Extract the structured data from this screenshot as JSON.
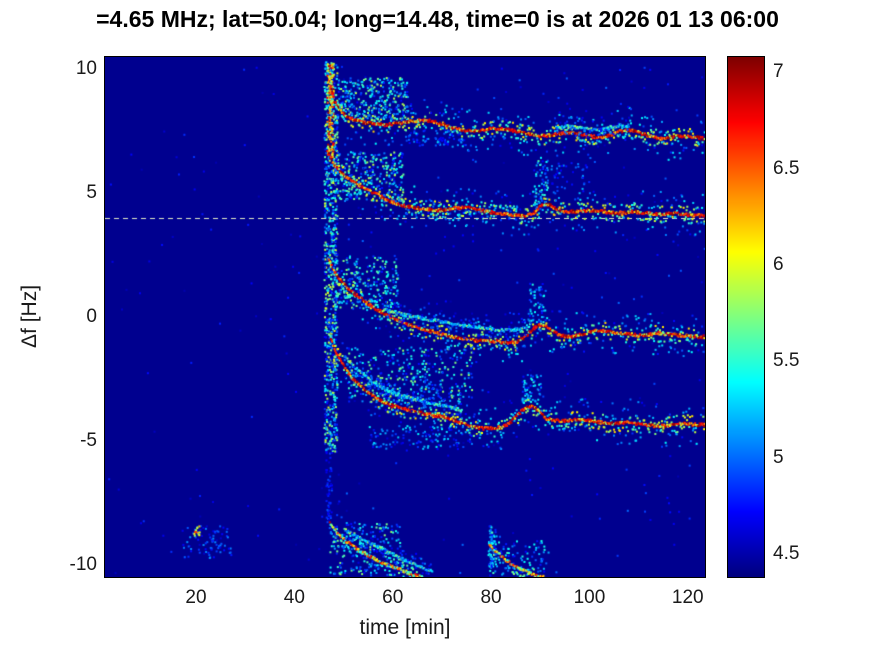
{
  "chart_data": {
    "type": "heatmap",
    "title": "=4.65 MHz;  lat=50.04; long=14.48, time=0 is at 2026 01 13 06:00",
    "xlabel": "time [min]",
    "ylabel": "Δf [Hz]",
    "xlim": [
      1.5,
      123.5
    ],
    "ylim": [
      -10.5,
      10.5
    ],
    "xticks": [
      20,
      40,
      60,
      80,
      100,
      120
    ],
    "yticks": [
      10,
      5,
      0,
      -5,
      -10
    ],
    "grid": false,
    "colormap": "jet",
    "background_value": 4.42,
    "colorbar": {
      "position": "right",
      "range": [
        4.38,
        7.08
      ],
      "ticks": [
        7,
        6.5,
        6,
        5.5,
        5,
        4.5
      ]
    },
    "reference_line": {
      "f": 4.0,
      "style": "dashed",
      "color": "#e3ecc8"
    },
    "traces": [
      {
        "name": "upper-trace",
        "strength": "strong",
        "points": [
          [
            46.6,
            10.2
          ],
          [
            47.2,
            9.3
          ],
          [
            48,
            8.7
          ],
          [
            49,
            8.35
          ],
          [
            50.5,
            8.1
          ],
          [
            52,
            7.95
          ],
          [
            54,
            7.85
          ],
          [
            56,
            7.8
          ],
          [
            58,
            7.75
          ],
          [
            60,
            7.8
          ],
          [
            62,
            7.85
          ],
          [
            64,
            7.9
          ],
          [
            66,
            7.95
          ],
          [
            68,
            7.9
          ],
          [
            70,
            7.8
          ],
          [
            72,
            7.65
          ],
          [
            74,
            7.55
          ],
          [
            76,
            7.5
          ],
          [
            78,
            7.55
          ],
          [
            80,
            7.6
          ],
          [
            82,
            7.6
          ],
          [
            84,
            7.55
          ],
          [
            86,
            7.45
          ],
          [
            88,
            7.35
          ],
          [
            90,
            7.3
          ],
          [
            92,
            7.35
          ],
          [
            94,
            7.4
          ],
          [
            96,
            7.45
          ],
          [
            98,
            7.4
          ],
          [
            100,
            7.3
          ],
          [
            102,
            7.25
          ],
          [
            104,
            7.35
          ],
          [
            106,
            7.5
          ],
          [
            108,
            7.55
          ],
          [
            110,
            7.45
          ],
          [
            112,
            7.3
          ],
          [
            114,
            7.2
          ],
          [
            116,
            7.25
          ],
          [
            118,
            7.3
          ],
          [
            120,
            7.3
          ],
          [
            122,
            7.25
          ],
          [
            123.3,
            7.2
          ]
        ]
      },
      {
        "name": "upper-trace-echo",
        "strength": "faint",
        "points": [
          [
            93,
            7.65
          ],
          [
            96,
            7.7
          ],
          [
            99,
            7.6
          ],
          [
            102,
            7.55
          ],
          [
            105,
            7.7
          ],
          [
            108,
            7.75
          ]
        ]
      },
      {
        "name": "upper-mid-trace",
        "strength": "strong",
        "points": [
          [
            46.8,
            6.6
          ],
          [
            48,
            6.1
          ],
          [
            49.5,
            5.8
          ],
          [
            51,
            5.55
          ],
          [
            53,
            5.3
          ],
          [
            55,
            5.1
          ],
          [
            57,
            4.9
          ],
          [
            59,
            4.7
          ],
          [
            61,
            4.55
          ],
          [
            63,
            4.45
          ],
          [
            65,
            4.4
          ],
          [
            67,
            4.35
          ],
          [
            69,
            4.3
          ],
          [
            71,
            4.35
          ],
          [
            73,
            4.4
          ],
          [
            75,
            4.45
          ],
          [
            77,
            4.35
          ],
          [
            79,
            4.25
          ],
          [
            81,
            4.2
          ],
          [
            83,
            4.15
          ],
          [
            85,
            4.1
          ],
          [
            87,
            4.1
          ],
          [
            88.5,
            4.2
          ],
          [
            90,
            4.5
          ],
          [
            91.5,
            4.55
          ],
          [
            93,
            4.35
          ],
          [
            95,
            4.25
          ],
          [
            97,
            4.25
          ],
          [
            99,
            4.3
          ],
          [
            101,
            4.3
          ],
          [
            103,
            4.25
          ],
          [
            105,
            4.2
          ],
          [
            107,
            4.2
          ],
          [
            109,
            4.25
          ],
          [
            111,
            4.2
          ],
          [
            113,
            4.15
          ],
          [
            115,
            4.15
          ],
          [
            117,
            4.2
          ],
          [
            119,
            4.15
          ],
          [
            121,
            4.1
          ],
          [
            123.3,
            4.1
          ]
        ]
      },
      {
        "name": "center-trace",
        "strength": "strong",
        "points": [
          [
            46.8,
            2.3
          ],
          [
            48,
            1.8
          ],
          [
            49.5,
            1.4
          ],
          [
            51,
            1.1
          ],
          [
            53,
            0.8
          ],
          [
            55,
            0.5
          ],
          [
            57,
            0.25
          ],
          [
            59,
            0.05
          ],
          [
            61,
            -0.15
          ],
          [
            63,
            -0.3
          ],
          [
            65,
            -0.45
          ],
          [
            67,
            -0.55
          ],
          [
            69,
            -0.65
          ],
          [
            71,
            -0.75
          ],
          [
            73,
            -0.85
          ],
          [
            75,
            -0.9
          ],
          [
            77,
            -0.95
          ],
          [
            79,
            -0.95
          ],
          [
            81,
            -1.0
          ],
          [
            83,
            -1.05
          ],
          [
            85,
            -1.0
          ],
          [
            86.5,
            -0.85
          ],
          [
            88,
            -0.55
          ],
          [
            89.5,
            -0.3
          ],
          [
            91,
            -0.35
          ],
          [
            92.5,
            -0.6
          ],
          [
            94,
            -0.75
          ],
          [
            96,
            -0.8
          ],
          [
            98,
            -0.7
          ],
          [
            100,
            -0.6
          ],
          [
            102,
            -0.55
          ],
          [
            104,
            -0.6
          ],
          [
            106,
            -0.65
          ],
          [
            108,
            -0.7
          ],
          [
            110,
            -0.75
          ],
          [
            112,
            -0.7
          ],
          [
            114,
            -0.65
          ],
          [
            116,
            -0.7
          ],
          [
            118,
            -0.75
          ],
          [
            120,
            -0.75
          ],
          [
            122,
            -0.8
          ],
          [
            123.3,
            -0.8
          ]
        ]
      },
      {
        "name": "center-trace-echo",
        "strength": "faint",
        "points": [
          [
            58,
            0.3
          ],
          [
            62,
            0.1
          ],
          [
            66,
            -0.05
          ],
          [
            70,
            -0.2
          ],
          [
            74,
            -0.35
          ],
          [
            78,
            -0.45
          ],
          [
            82,
            -0.55
          ],
          [
            86,
            -0.5
          ],
          [
            88,
            -0.3
          ]
        ]
      },
      {
        "name": "lower-trace",
        "strength": "strong",
        "points": [
          [
            47.2,
            -0.9
          ],
          [
            48,
            -1.3
          ],
          [
            49,
            -1.7
          ],
          [
            50,
            -2.05
          ],
          [
            51.5,
            -2.45
          ],
          [
            53,
            -2.75
          ],
          [
            54.5,
            -3.0
          ],
          [
            56,
            -3.2
          ],
          [
            58,
            -3.45
          ],
          [
            60,
            -3.6
          ],
          [
            62,
            -3.7
          ],
          [
            64,
            -3.8
          ],
          [
            66,
            -3.9
          ],
          [
            68,
            -3.95
          ],
          [
            70,
            -4.05
          ],
          [
            72,
            -4.15
          ],
          [
            74,
            -4.3
          ],
          [
            76,
            -4.45
          ],
          [
            78,
            -4.5
          ],
          [
            80,
            -4.5
          ],
          [
            82,
            -4.45
          ],
          [
            83.5,
            -4.3
          ],
          [
            85,
            -4.0
          ],
          [
            86.5,
            -3.7
          ],
          [
            88,
            -3.6
          ],
          [
            89.5,
            -3.8
          ],
          [
            91,
            -4.1
          ],
          [
            93,
            -4.2
          ],
          [
            95,
            -4.2
          ],
          [
            97,
            -4.15
          ],
          [
            99,
            -4.15
          ],
          [
            101,
            -4.2
          ],
          [
            103,
            -4.3
          ],
          [
            105,
            -4.3
          ],
          [
            107,
            -4.25
          ],
          [
            109,
            -4.3
          ],
          [
            111,
            -4.35
          ],
          [
            113,
            -4.4
          ],
          [
            115,
            -4.4
          ],
          [
            117,
            -4.35
          ],
          [
            119,
            -4.3
          ],
          [
            121,
            -4.35
          ],
          [
            123.3,
            -4.35
          ]
        ]
      },
      {
        "name": "lower-trace-echo",
        "strength": "faint",
        "points": [
          [
            50,
            -1.6
          ],
          [
            53,
            -2.2
          ],
          [
            56,
            -2.7
          ],
          [
            59,
            -3.0
          ],
          [
            62,
            -3.2
          ],
          [
            65,
            -3.35
          ],
          [
            68,
            -3.5
          ],
          [
            71,
            -3.6
          ],
          [
            74,
            -3.8
          ]
        ]
      },
      {
        "name": "bottom-trace-1",
        "strength": "medium",
        "points": [
          [
            47,
            -8.3
          ],
          [
            48.5,
            -8.7
          ],
          [
            50,
            -9.0
          ],
          [
            52,
            -9.3
          ],
          [
            54,
            -9.55
          ],
          [
            56,
            -9.75
          ],
          [
            58,
            -9.95
          ],
          [
            60,
            -10.1
          ],
          [
            62,
            -10.25
          ],
          [
            64,
            -10.4
          ],
          [
            66,
            -10.5
          ]
        ]
      },
      {
        "name": "bottom-trace-1-echo",
        "strength": "faint",
        "points": [
          [
            50,
            -8.6
          ],
          [
            53,
            -8.9
          ],
          [
            56,
            -9.2
          ],
          [
            59,
            -9.5
          ],
          [
            62,
            -9.8
          ],
          [
            65,
            -10.05
          ],
          [
            68,
            -10.3
          ]
        ]
      },
      {
        "name": "bottom-trace-2",
        "strength": "medium",
        "points": [
          [
            79.5,
            -9.2
          ],
          [
            81,
            -9.5
          ],
          [
            83,
            -9.85
          ],
          [
            85,
            -10.1
          ],
          [
            87,
            -10.3
          ],
          [
            89,
            -10.45
          ],
          [
            90.5,
            -10.5
          ]
        ]
      }
    ],
    "clouds": [
      {
        "t": [
          45.9,
          48.6
        ],
        "f": [
          -5.4,
          10.4
        ],
        "n": 850,
        "v": [
          4.6,
          6.0
        ]
      },
      {
        "t": [
          46.5,
          47.8
        ],
        "f": [
          6.5,
          10.3
        ],
        "n": 160,
        "v": [
          5.6,
          7.05
        ]
      },
      {
        "t": [
          46.3,
          47.5
        ],
        "f": [
          -8.3,
          -5.3
        ],
        "n": 50,
        "v": [
          4.55,
          4.95
        ]
      },
      {
        "t": [
          48,
          63
        ],
        "f": [
          7.9,
          9.7
        ],
        "n": 330,
        "v": [
          4.7,
          5.9
        ]
      },
      {
        "t": [
          48,
          62
        ],
        "f": [
          4.7,
          6.7
        ],
        "n": 300,
        "v": [
          4.7,
          5.9
        ]
      },
      {
        "t": [
          48,
          61
        ],
        "f": [
          0.4,
          2.5
        ],
        "n": 240,
        "v": [
          4.7,
          5.8
        ]
      },
      {
        "t": [
          50,
          76
        ],
        "f": [
          -3.4,
          -1.2
        ],
        "n": 330,
        "v": [
          4.7,
          5.8
        ]
      },
      {
        "t": [
          55,
          76
        ],
        "f": [
          -5.3,
          -4.3
        ],
        "n": 110,
        "v": [
          4.6,
          5.4
        ]
      },
      {
        "t": [
          47,
          62
        ],
        "f": [
          -10.4,
          -8.3
        ],
        "n": 200,
        "v": [
          4.7,
          5.8
        ]
      },
      {
        "t": [
          62,
          86
        ],
        "f": [
          3.95,
          4.6
        ],
        "n": 90,
        "v": [
          4.7,
          5.5
        ]
      },
      {
        "t": [
          88.5,
          91.5
        ],
        "f": [
          4.4,
          6.4
        ],
        "n": 70,
        "v": [
          4.7,
          5.6
        ]
      },
      {
        "t": [
          87.5,
          91
        ],
        "f": [
          -0.2,
          1.4
        ],
        "n": 55,
        "v": [
          4.7,
          5.5
        ]
      },
      {
        "t": [
          86,
          90
        ],
        "f": [
          -3.4,
          -2.3
        ],
        "n": 55,
        "v": [
          4.7,
          5.5
        ]
      },
      {
        "t": [
          79.3,
          81
        ],
        "f": [
          -10.3,
          -8.4
        ],
        "n": 60,
        "v": [
          4.7,
          5.6
        ]
      },
      {
        "t": [
          79,
          91.5
        ],
        "f": [
          -10.4,
          -9.0
        ],
        "n": 90,
        "v": [
          4.7,
          5.5
        ]
      },
      {
        "t": [
          17,
          27
        ],
        "f": [
          -9.7,
          -8.4
        ],
        "n": 80,
        "v": [
          4.55,
          5.1
        ]
      },
      {
        "t": [
          19.4,
          20.6
        ],
        "f": [
          -8.8,
          -8.4
        ],
        "n": 12,
        "v": [
          5.6,
          6.7
        ]
      },
      {
        "t": [
          63,
          75
        ],
        "f": [
          6.9,
          7.6
        ],
        "n": 70,
        "v": [
          4.6,
          5.2
        ]
      },
      {
        "t": [
          92,
          100
        ],
        "f": [
          5.2,
          6.3
        ],
        "n": 40,
        "v": [
          4.6,
          5.2
        ]
      },
      {
        "t": [
          45,
          123.3
        ],
        "f": [
          -10.4,
          10.4
        ],
        "n": 260,
        "v": [
          4.5,
          5.0
        ]
      },
      {
        "t": [
          2,
          45
        ],
        "f": [
          -10.4,
          10.4
        ],
        "n": 70,
        "v": [
          4.5,
          4.85
        ]
      }
    ]
  }
}
